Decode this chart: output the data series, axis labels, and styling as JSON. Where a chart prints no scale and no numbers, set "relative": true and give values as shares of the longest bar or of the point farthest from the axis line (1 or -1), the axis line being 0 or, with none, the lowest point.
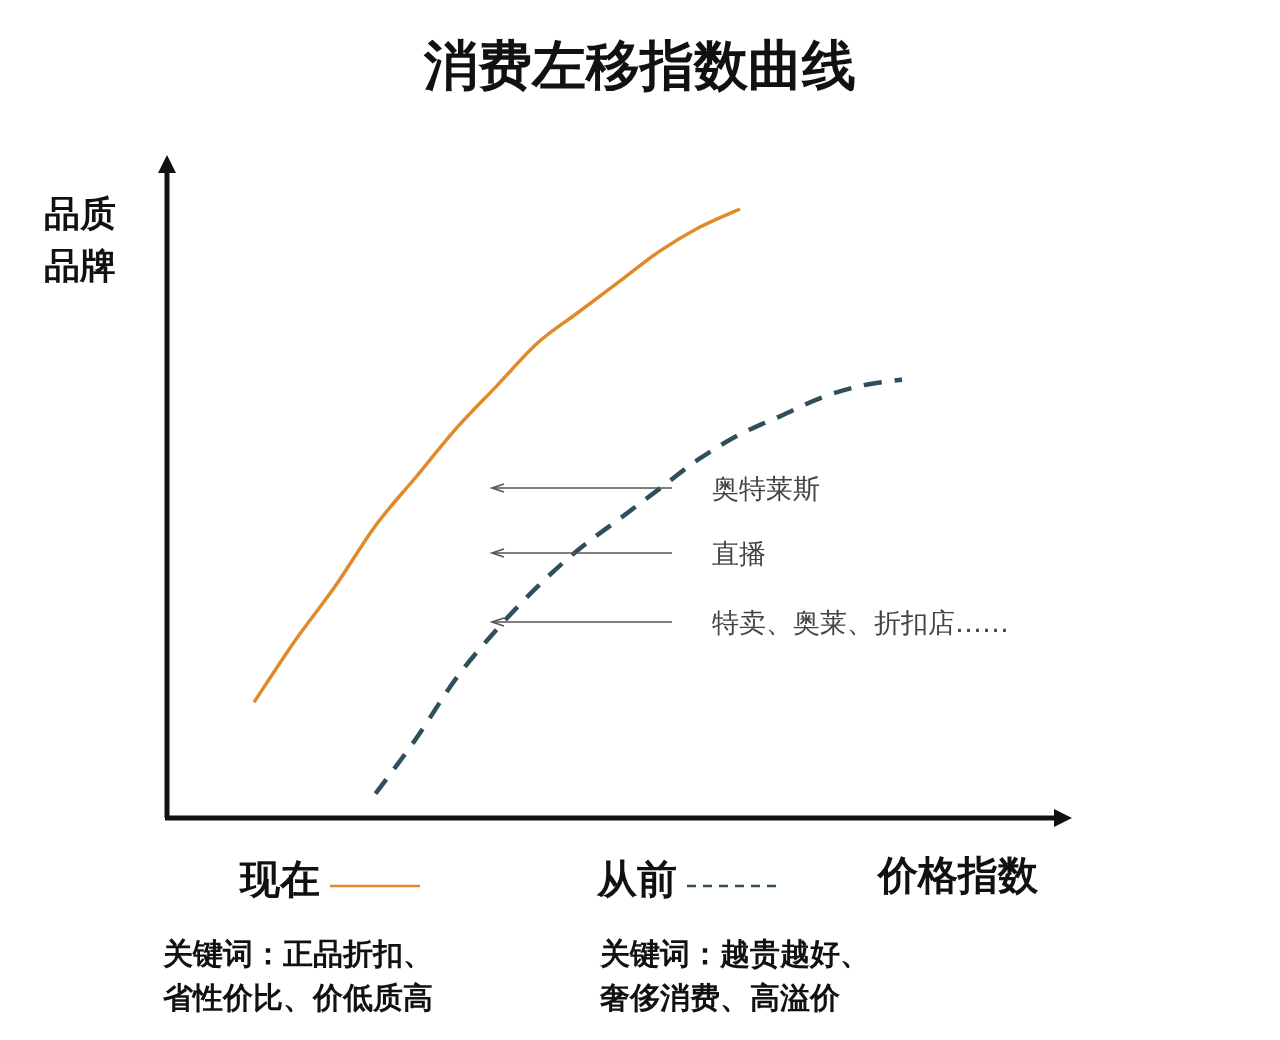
{
  "chart_data": {
    "type": "line",
    "title": "消费左移指数曲线",
    "xlabel": "价格指数",
    "ylabel": "品质品牌",
    "relative": true,
    "legend": "bottom",
    "categories": [
      null,
      null,
      null,
      null,
      null,
      null,
      null,
      null,
      null,
      null,
      null,
      null,
      null,
      null,
      null,
      null,
      null
    ],
    "series": [
      {
        "name": "现在",
        "color": "#e08a2a",
        "line_style": "solid",
        "values": [
          0.19,
          0.29,
          0.38,
          0.48,
          0.56,
          0.64,
          0.71,
          0.78,
          0.83,
          0.88,
          0.93,
          0.97,
          1,
          null,
          null,
          null,
          null
        ]
      },
      {
        "name": "从前",
        "color": "#2f4f5a",
        "line_style": "dashed",
        "values": [
          null,
          null,
          null,
          0.04,
          0.13,
          0.23,
          0.31,
          0.38,
          0.44,
          0.49,
          0.54,
          0.59,
          0.63,
          0.66,
          0.69,
          0.71,
          0.72
        ]
      }
    ],
    "annotations": [
      "奥特莱斯",
      "直播",
      "特卖、奥莱、折扣店……",
      "关键词：正品折扣、省性价比、价低质高",
      "关键词：越贵越好、奢侈消费、高溢价"
    ]
  }
}
